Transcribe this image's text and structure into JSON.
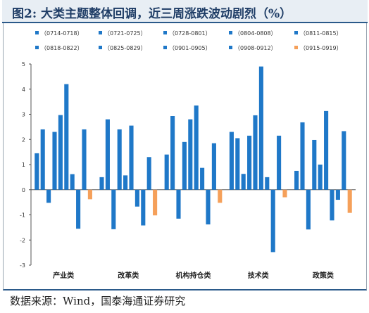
{
  "title": "图2:  大类主题整体回调，近三周涨跌波动剧烈（%）",
  "source": "数据来源：Wind，国泰海通证券研究",
  "chart_data": {
    "type": "bar",
    "categories": [
      "产业类",
      "改革类",
      "机构持仓类",
      "技术类",
      "政策类"
    ],
    "ylim": [
      -3,
      5
    ],
    "yticks": [
      "-3",
      "-2",
      "-1",
      "0",
      "1",
      "2",
      "3",
      "4",
      "5"
    ],
    "grid": false,
    "legend_position": "top",
    "colors": {
      "blue": "#1f78c8",
      "orange": "#f5a05a"
    },
    "series": [
      {
        "name": "（0714-0718）",
        "color": "#1f78c8",
        "values": [
          1.45,
          0.5,
          1.4,
          2.3,
          0.75
        ]
      },
      {
        "name": "（0721-0725）",
        "color": "#1f78c8",
        "values": [
          2.4,
          2.8,
          2.93,
          2.05,
          2.68
        ]
      },
      {
        "name": "（0728-0801）",
        "color": "#1f78c8",
        "values": [
          -0.52,
          -1.57,
          -1.15,
          0.63,
          -1.58
        ]
      },
      {
        "name": "（0804-0808）",
        "color": "#1f78c8",
        "values": [
          2.3,
          2.4,
          1.9,
          2.15,
          1.98
        ]
      },
      {
        "name": "（0811-0815）",
        "color": "#1f78c8",
        "values": [
          2.97,
          0.57,
          2.8,
          2.96,
          1.0
        ]
      },
      {
        "name": "（0818-0822）",
        "color": "#1f78c8",
        "values": [
          4.2,
          2.55,
          3.35,
          4.9,
          3.13
        ]
      },
      {
        "name": "（0825-0829）",
        "color": "#1f78c8",
        "values": [
          0.62,
          -0.67,
          0.87,
          0.5,
          -1.22
        ]
      },
      {
        "name": "（0901-0905）",
        "color": "#1f78c8",
        "values": [
          -1.55,
          -1.42,
          -1.38,
          -2.48,
          -0.4
        ]
      },
      {
        "name": "（0908-0912）",
        "color": "#1f78c8",
        "values": [
          2.4,
          1.3,
          1.85,
          2.15,
          2.33
        ]
      },
      {
        "name": "（0915-0919）",
        "color": "#f5a05a",
        "values": [
          -0.38,
          -1.02,
          -0.52,
          -0.3,
          -0.92
        ]
      }
    ]
  }
}
